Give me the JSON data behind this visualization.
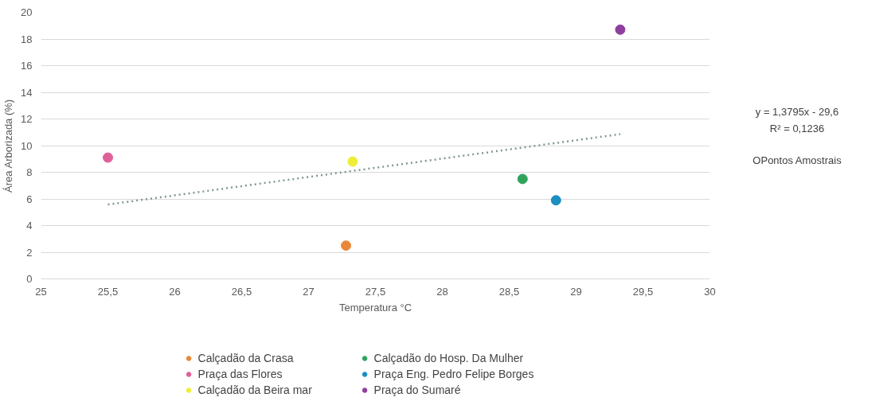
{
  "chart_data": {
    "type": "scatter",
    "xlabel": "Temperatura °C",
    "ylabel": "Área Arborizada (%)",
    "xlim": [
      25,
      30
    ],
    "ylim": [
      0,
      20
    ],
    "xticks": [
      25,
      {
        "value": 25.5,
        "label": "25,5"
      },
      26,
      {
        "value": 26.5,
        "label": "26,5"
      },
      27,
      {
        "value": 27.5,
        "label": "27,5"
      },
      28,
      {
        "value": 28.5,
        "label": "28,5"
      },
      29,
      {
        "value": 29.5,
        "label": "29,5"
      },
      30
    ],
    "yticks": [
      0,
      2,
      4,
      6,
      8,
      10,
      12,
      14,
      16,
      18,
      20
    ],
    "grid": "y",
    "legend": "bottom",
    "marker": "circle",
    "series": [
      {
        "name": "Calçadão da Crasa",
        "color": "#e8873a",
        "x": [
          27.28
        ],
        "values": [
          2.5
        ]
      },
      {
        "name": "Praça das Flores",
        "color": "#e0609a",
        "x": [
          25.5
        ],
        "values": [
          9.1
        ]
      },
      {
        "name": "Calçadão da Beira mar",
        "color": "#eeee3a",
        "x": [
          27.33
        ],
        "values": [
          8.8
        ]
      },
      {
        "name": "Calçadão do Hosp. Da Mulher",
        "color": "#2fa35c",
        "x": [
          28.6
        ],
        "values": [
          7.5
        ]
      },
      {
        "name": "Praça Eng. Pedro Felipe Borges",
        "color": "#1b8fc0",
        "x": [
          28.85
        ],
        "values": [
          5.9
        ]
      },
      {
        "name": "Praça do Sumaré",
        "color": "#8e3f9e",
        "x": [
          29.33
        ],
        "values": [
          18.7
        ]
      },
      {
        "type": "line",
        "color": "#7f9a8c",
        "line_style": "dotted",
        "marker": "none",
        "x": [
          25.5,
          29.33
        ],
        "values": [
          5.58,
          10.86
        ]
      }
    ],
    "annotations": [
      "y = 1,3795x - 29,6",
      "R² = 0,1236",
      "OPontos Amostrais"
    ]
  }
}
